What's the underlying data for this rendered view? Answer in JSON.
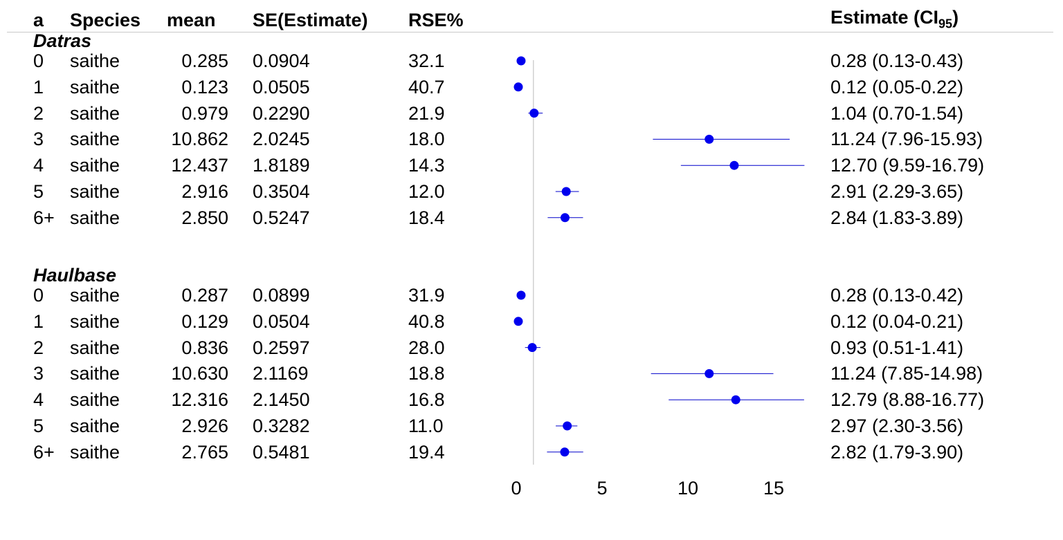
{
  "headers": {
    "a": "a",
    "species": "Species",
    "mean": "mean",
    "se": "SE(Estimate)",
    "rse": "RSE%",
    "estimate": "Estimate (",
    "ci": "CI",
    "ci_sub": "95",
    "estimate_close": ")"
  },
  "chart_data": {
    "type": "forest",
    "title": "",
    "xlabel": "",
    "ylabel": "",
    "xlim": [
      0,
      16
    ],
    "x_ticks": [
      "0",
      "5",
      "10",
      "15"
    ],
    "reference_line": 1,
    "groups": [
      {
        "name": "Datras",
        "rows": [
          {
            "a": "0",
            "species": "saithe",
            "mean": "0.285",
            "se": "0.0904",
            "rse": "32.1",
            "estimate_text": "0.28 (0.13-0.43)",
            "estimate": 0.28,
            "lower": 0.13,
            "upper": 0.43
          },
          {
            "a": "1",
            "species": "saithe",
            "mean": "0.123",
            "se": "0.0505",
            "rse": "40.7",
            "estimate_text": "0.12 (0.05-0.22)",
            "estimate": 0.12,
            "lower": 0.05,
            "upper": 0.22
          },
          {
            "a": "2",
            "species": "saithe",
            "mean": "0.979",
            "se": "0.2290",
            "rse": "21.9",
            "estimate_text": "1.04 (0.70-1.54)",
            "estimate": 1.04,
            "lower": 0.7,
            "upper": 1.54
          },
          {
            "a": "3",
            "species": "saithe",
            "mean": "10.862",
            "se": "2.0245",
            "rse": "18.0",
            "estimate_text": "11.24 (7.96-15.93)",
            "estimate": 11.24,
            "lower": 7.96,
            "upper": 15.93
          },
          {
            "a": "4",
            "species": "saithe",
            "mean": "12.437",
            "se": "1.8189",
            "rse": "14.3",
            "estimate_text": "12.70 (9.59-16.79)",
            "estimate": 12.7,
            "lower": 9.59,
            "upper": 16.79
          },
          {
            "a": "5",
            "species": "saithe",
            "mean": "2.916",
            "se": "0.3504",
            "rse": "12.0",
            "estimate_text": "2.91 (2.29-3.65)",
            "estimate": 2.91,
            "lower": 2.29,
            "upper": 3.65
          },
          {
            "a": "6+",
            "species": "saithe",
            "mean": "2.850",
            "se": "0.5247",
            "rse": "18.4",
            "estimate_text": "2.84 (1.83-3.89)",
            "estimate": 2.84,
            "lower": 1.83,
            "upper": 3.89
          }
        ]
      },
      {
        "name": "Haulbase",
        "rows": [
          {
            "a": "0",
            "species": "saithe",
            "mean": "0.287",
            "se": "0.0899",
            "rse": "31.9",
            "estimate_text": "0.28 (0.13-0.42)",
            "estimate": 0.28,
            "lower": 0.13,
            "upper": 0.42
          },
          {
            "a": "1",
            "species": "saithe",
            "mean": "0.129",
            "se": "0.0504",
            "rse": "40.8",
            "estimate_text": "0.12 (0.04-0.21)",
            "estimate": 0.12,
            "lower": 0.04,
            "upper": 0.21
          },
          {
            "a": "2",
            "species": "saithe",
            "mean": "0.836",
            "se": "0.2597",
            "rse": "28.0",
            "estimate_text": "0.93 (0.51-1.41)",
            "estimate": 0.93,
            "lower": 0.51,
            "upper": 1.41
          },
          {
            "a": "3",
            "species": "saithe",
            "mean": "10.630",
            "se": "2.1169",
            "rse": "18.8",
            "estimate_text": "11.24 (7.85-14.98)",
            "estimate": 11.24,
            "lower": 7.85,
            "upper": 14.98
          },
          {
            "a": "4",
            "species": "saithe",
            "mean": "12.316",
            "se": "2.1450",
            "rse": "16.8",
            "estimate_text": "12.79 (8.88-16.77)",
            "estimate": 12.79,
            "lower": 8.88,
            "upper": 16.77
          },
          {
            "a": "5",
            "species": "saithe",
            "mean": "2.926",
            "se": "0.3282",
            "rse": "11.0",
            "estimate_text": "2.97 (2.30-3.56)",
            "estimate": 2.97,
            "lower": 2.3,
            "upper": 3.56
          },
          {
            "a": "6+",
            "species": "saithe",
            "mean": "2.765",
            "se": "0.5481",
            "rse": "19.4",
            "estimate_text": "2.82 (1.79-3.90)",
            "estimate": 2.82,
            "lower": 1.79,
            "upper": 3.9
          }
        ]
      }
    ]
  },
  "colors": {
    "point": "#0000ee",
    "ci_line": "#0000cc",
    "reference_line": "#bbbbbb",
    "header_rule": "#c8c8c8"
  }
}
